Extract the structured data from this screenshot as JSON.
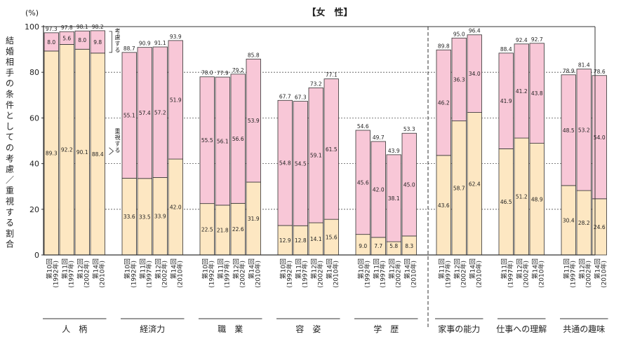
{
  "chart_data": {
    "type": "bar",
    "stacked": true,
    "title": "【女　性】",
    "unit_label": "(%)",
    "ylabel": "結婚相手の条件としての考慮／重視する割合",
    "ylim": [
      0,
      100
    ],
    "yticks": [
      0,
      20,
      40,
      60,
      80,
      100
    ],
    "grid": "dotted-horizontal",
    "legend_labels": {
      "consider": "考慮する",
      "emphasize": "重視する"
    },
    "colors": {
      "emphasize": "#fde7c2",
      "consider": "#f8c7d7",
      "border": "#333333"
    },
    "groups": [
      {
        "name": "人　柄",
        "bars": [
          {
            "round": "第10回",
            "year": "(1992年)",
            "emphasize": 89.3,
            "consider": 8.0,
            "total": 97.3
          },
          {
            "round": "第11回",
            "year": "(1997年)",
            "emphasize": 92.2,
            "consider": 5.6,
            "total": 97.8
          },
          {
            "round": "第12回",
            "year": "(2002年)",
            "emphasize": 90.1,
            "consider": 8.0,
            "total": 98.1
          },
          {
            "round": "第14回",
            "year": "(2010年)",
            "emphasize": 88.4,
            "consider": 9.8,
            "total": 98.2
          }
        ]
      },
      {
        "name": "経済力",
        "bars": [
          {
            "round": "第10回",
            "year": "(1992年)",
            "emphasize": 33.6,
            "consider": 55.1,
            "total": 88.7
          },
          {
            "round": "第11回",
            "year": "(1997年)",
            "emphasize": 33.5,
            "consider": 57.4,
            "total": 90.9
          },
          {
            "round": "第12回",
            "year": "(2002年)",
            "emphasize": 33.9,
            "consider": 57.2,
            "total": 91.1
          },
          {
            "round": "第14回",
            "year": "(2010年)",
            "emphasize": 42.0,
            "consider": 51.9,
            "total": 93.9
          }
        ]
      },
      {
        "name": "職　業",
        "bars": [
          {
            "round": "第10回",
            "year": "(1992年)",
            "emphasize": 22.5,
            "consider": 55.5,
            "total": 78.0
          },
          {
            "round": "第11回",
            "year": "(1997年)",
            "emphasize": 21.8,
            "consider": 56.1,
            "total": 77.9
          },
          {
            "round": "第12回",
            "year": "(2002年)",
            "emphasize": 22.6,
            "consider": 56.6,
            "total": 79.2
          },
          {
            "round": "第14回",
            "year": "(2010年)",
            "emphasize": 31.9,
            "consider": 53.9,
            "total": 85.8
          }
        ]
      },
      {
        "name": "容　姿",
        "bars": [
          {
            "round": "第10回",
            "year": "(1992年)",
            "emphasize": 12.9,
            "consider": 54.8,
            "total": 67.7
          },
          {
            "round": "第11回",
            "year": "(1997年)",
            "emphasize": 12.8,
            "consider": 54.5,
            "total": 67.3
          },
          {
            "round": "第12回",
            "year": "(2002年)",
            "emphasize": 14.1,
            "consider": 59.1,
            "total": 73.2
          },
          {
            "round": "第14回",
            "year": "(2010年)",
            "emphasize": 15.6,
            "consider": 61.5,
            "total": 77.1
          }
        ]
      },
      {
        "name": "学　歴",
        "bars": [
          {
            "round": "第10回",
            "year": "(1992年)",
            "emphasize": 9.0,
            "consider": 45.6,
            "total": 54.6
          },
          {
            "round": "第11回",
            "year": "(1997年)",
            "emphasize": 7.7,
            "consider": 42.0,
            "total": 49.7
          },
          {
            "round": "第12回",
            "year": "(2002年)",
            "emphasize": 5.8,
            "consider": 38.1,
            "total": 43.9
          },
          {
            "round": "第14回",
            "year": "(2010年)",
            "emphasize": 8.3,
            "consider": 45.0,
            "total": 53.3
          }
        ]
      },
      {
        "name": "家事の能力",
        "bars": [
          {
            "round": "第11回",
            "year": "(1997年)",
            "emphasize": 43.6,
            "consider": 46.2,
            "total": 89.8
          },
          {
            "round": "第12回",
            "year": "(2002年)",
            "emphasize": 58.7,
            "consider": 36.3,
            "total": 95.0
          },
          {
            "round": "第14回",
            "year": "(2010年)",
            "emphasize": 62.4,
            "consider": 34.0,
            "total": 96.4
          }
        ]
      },
      {
        "name": "仕事への理解",
        "bars": [
          {
            "round": "第11回",
            "year": "(1997年)",
            "emphasize": 46.5,
            "consider": 41.9,
            "total": 88.4
          },
          {
            "round": "第12回",
            "year": "(2002年)",
            "emphasize": 51.2,
            "consider": 41.2,
            "total": 92.4
          },
          {
            "round": "第14回",
            "year": "(2010年)",
            "emphasize": 48.9,
            "consider": 43.8,
            "total": 92.7
          }
        ]
      },
      {
        "name": "共通の趣味",
        "bars": [
          {
            "round": "第11回",
            "year": "(1997年)",
            "emphasize": 30.4,
            "consider": 48.5,
            "total": 78.9
          },
          {
            "round": "第12回",
            "year": "(2002年)",
            "emphasize": 28.2,
            "consider": 53.2,
            "total": 81.4
          },
          {
            "round": "第14回",
            "year": "(2010年)",
            "emphasize": 24.6,
            "consider": 54.0,
            "total": 78.6
          }
        ]
      }
    ]
  }
}
